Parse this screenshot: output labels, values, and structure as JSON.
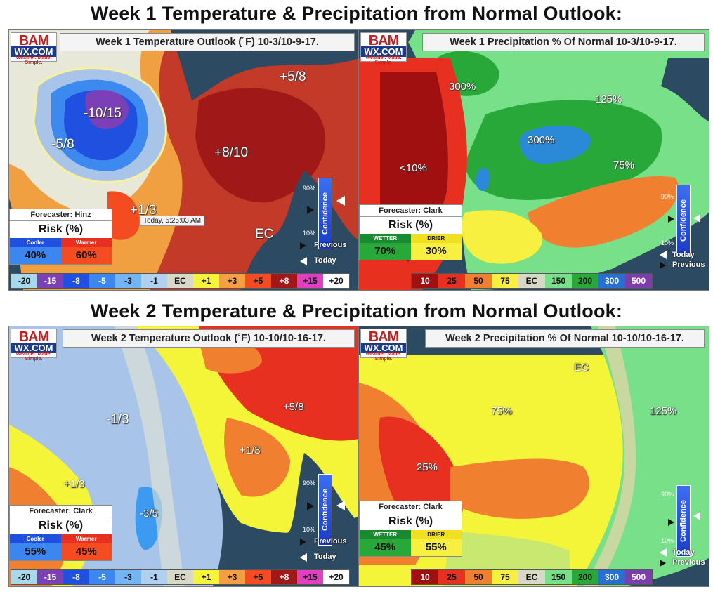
{
  "headings": {
    "week1": "Week 1 Temperature & Precipitation from Normal Outlook:",
    "week2": "Week 2 Temperature & Precipitation from Normal Outlook:"
  },
  "logo": {
    "bam": "BAM",
    "wx": "WX.COM",
    "tagline": "Weather. Made. Simple."
  },
  "panels": {
    "w1temp": {
      "title": "Week 1 Temperature Outlook (˚F) 10-3/10-9-17.",
      "labels": [
        "-10/15",
        "-5/8",
        "+5/8",
        "+8/10",
        "+1/3",
        "EC"
      ],
      "forecaster": "Forecaster: Hinz",
      "risk_title": "Risk (%)",
      "risk": [
        {
          "label": "Cooler",
          "value": "40%"
        },
        {
          "label": "Warmer",
          "value": "60%"
        }
      ],
      "tooltip": "Today, 5:25:03 AM"
    },
    "w1precip": {
      "title": "Week 1 Precipitation % Of Normal 10-3/10-9-17.",
      "labels": [
        "300%",
        "125%",
        "300%",
        "<10%",
        "75%"
      ],
      "forecaster": "Forecaster: Clark",
      "risk_title": "Risk (%)",
      "risk": [
        {
          "label": "WETTER",
          "value": "70%"
        },
        {
          "label": "DRIER",
          "value": "30%"
        }
      ]
    },
    "w2temp": {
      "title": "Week 2 Temperature Outlook (˚F) 10-10/10-16-17.",
      "labels": [
        "-1/3",
        "+5/8",
        "+1/3",
        "+1/3",
        "-3/5"
      ],
      "forecaster": "Forecaster: Clark",
      "risk_title": "Risk (%)",
      "risk": [
        {
          "label": "Cooler",
          "value": "55%"
        },
        {
          "label": "Warmer",
          "value": "45%"
        }
      ]
    },
    "w2precip": {
      "title": "Week 2 Precipitation % Of Normal 10-10/10-16-17.",
      "labels": [
        "EC",
        "75%",
        "125%",
        "25%"
      ],
      "forecaster": "Forecaster: Clark",
      "risk_title": "Risk (%)",
      "risk": [
        {
          "label": "WETTER",
          "value": "45%"
        },
        {
          "label": "DRIER",
          "value": "55%"
        }
      ]
    }
  },
  "temp_legend": [
    "-20",
    "-15",
    "-8",
    "-5",
    "-3",
    "-1",
    "EC",
    "+1",
    "+3",
    "+5",
    "+8",
    "+15",
    "+20"
  ],
  "temp_legend_colors": [
    "#a8d8ec",
    "#7b3fb8",
    "#2050e0",
    "#3c86f0",
    "#74b4f4",
    "#b0d0f0",
    "#d8d8c8",
    "#f4f438",
    "#f4a040",
    "#f44c20",
    "#a01818",
    "#e040c0",
    "#ffffff"
  ],
  "precip_legend": [
    "10",
    "25",
    "50",
    "75",
    "EC",
    "150",
    "200",
    "300",
    "500"
  ],
  "precip_legend_colors": [
    "#a01010",
    "#e83020",
    "#f08030",
    "#f8f040",
    "#d8d8c8",
    "#78e088",
    "#28a838",
    "#2870d0",
    "#7a3fa8"
  ],
  "confidence": {
    "label": "Confidence",
    "top": "90%",
    "bottom": "10%",
    "previous": "Previous",
    "today": "Today"
  }
}
